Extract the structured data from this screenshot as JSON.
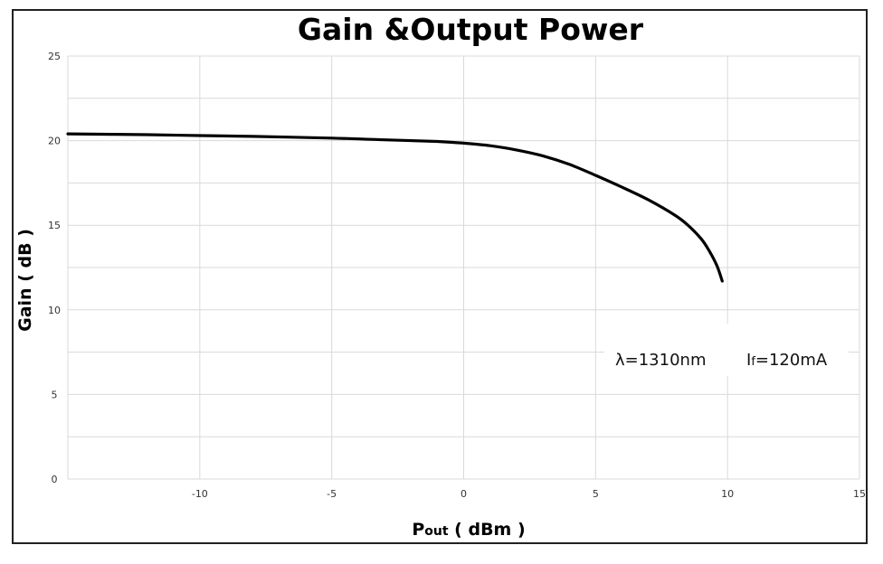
{
  "chart_data": {
    "type": "line",
    "title": "Gain &Output Power",
    "xlabel": "Pout ( dBm )",
    "xlabel_main": "P",
    "xlabel_sub": "out",
    "xlabel_rest": " ( dBm )",
    "ylabel": "Gain ( dB )",
    "xlim": [
      -15,
      15
    ],
    "ylim": [
      0,
      25
    ],
    "x_ticks": [
      -10,
      -5,
      0,
      5,
      10,
      15
    ],
    "y_ticks": [
      0,
      5,
      10,
      15,
      20,
      25
    ],
    "grid": true,
    "series": [
      {
        "x": [
          -15,
          -12,
          -10,
          -8,
          -5,
          -3,
          -1,
          0,
          1,
          2,
          3,
          4,
          5,
          6,
          7,
          8,
          8.5,
          9,
          9.3,
          9.6,
          9.8
        ],
        "y": [
          20.4,
          20.35,
          20.3,
          20.25,
          20.15,
          20.05,
          19.95,
          19.85,
          19.7,
          19.45,
          19.1,
          18.6,
          17.95,
          17.25,
          16.5,
          15.6,
          15.0,
          14.2,
          13.5,
          12.6,
          11.7
        ]
      }
    ],
    "annotations": [
      {
        "text": "λ=1310nm"
      },
      {
        "main": "I",
        "sub": "f",
        "rest": "=120mA"
      }
    ]
  }
}
